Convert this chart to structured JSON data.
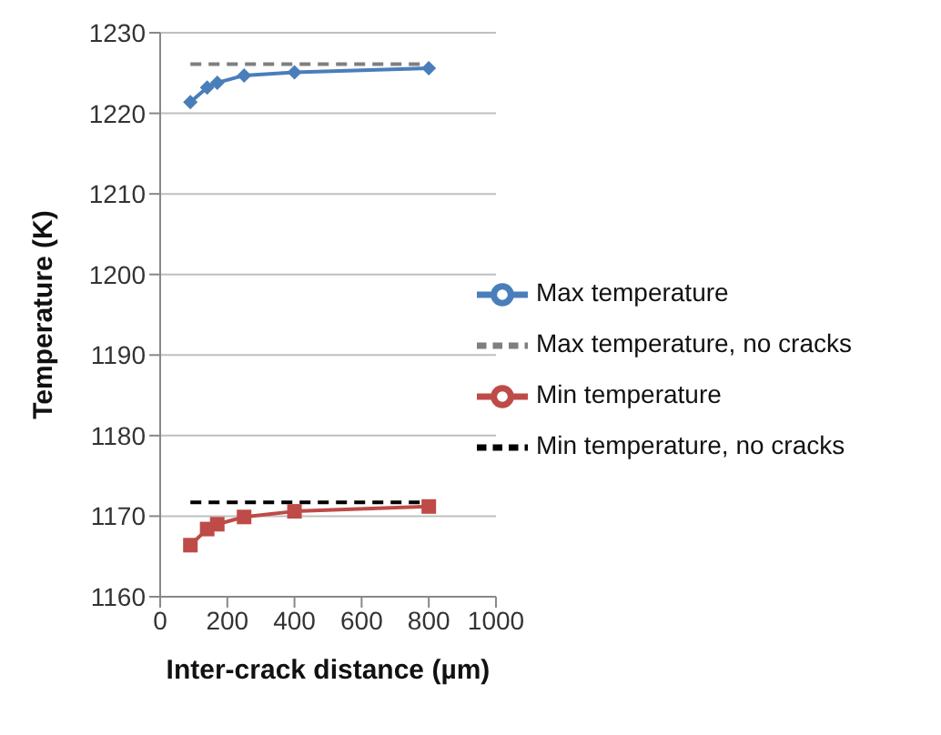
{
  "chart_data": {
    "type": "line",
    "xlabel": "Inter-crack distance (µm)",
    "ylabel": "Temperature (K)",
    "xlim": [
      0,
      1000
    ],
    "xticks": [
      0,
      200,
      400,
      600,
      800,
      1000
    ],
    "ylim": [
      1160,
      1230
    ],
    "yticks": [
      1160,
      1170,
      1180,
      1190,
      1200,
      1210,
      1220,
      1230
    ],
    "grid": "y",
    "legend": "right",
    "series": [
      {
        "name": "Max temperature",
        "color": "#4a7ebb",
        "marker": "diamond",
        "line_style": "solid",
        "x": [
          90,
          140,
          170,
          250,
          400,
          800
        ],
        "values": [
          1221.4,
          1223.2,
          1223.8,
          1224.7,
          1225.1,
          1225.6
        ]
      },
      {
        "name": "Min temperature",
        "color": "#be4b48",
        "marker": "square",
        "line_style": "solid",
        "x": [
          90,
          140,
          170,
          250,
          400,
          800
        ],
        "values": [
          1166.4,
          1168.4,
          1169.0,
          1169.9,
          1170.6,
          1171.2
        ]
      },
      {
        "name": "Min temperature, no cracks",
        "color": "#000000",
        "marker": "none",
        "line_style": "dashed",
        "x": [
          90,
          800
        ],
        "values": [
          1171.7,
          1171.7
        ]
      },
      {
        "name": "Max temperature, no cracks",
        "color": "#7f7f7f",
        "marker": "none",
        "line_style": "dashed",
        "x": [
          90,
          800
        ],
        "values": [
          1226.1,
          1226.1
        ]
      }
    ]
  }
}
